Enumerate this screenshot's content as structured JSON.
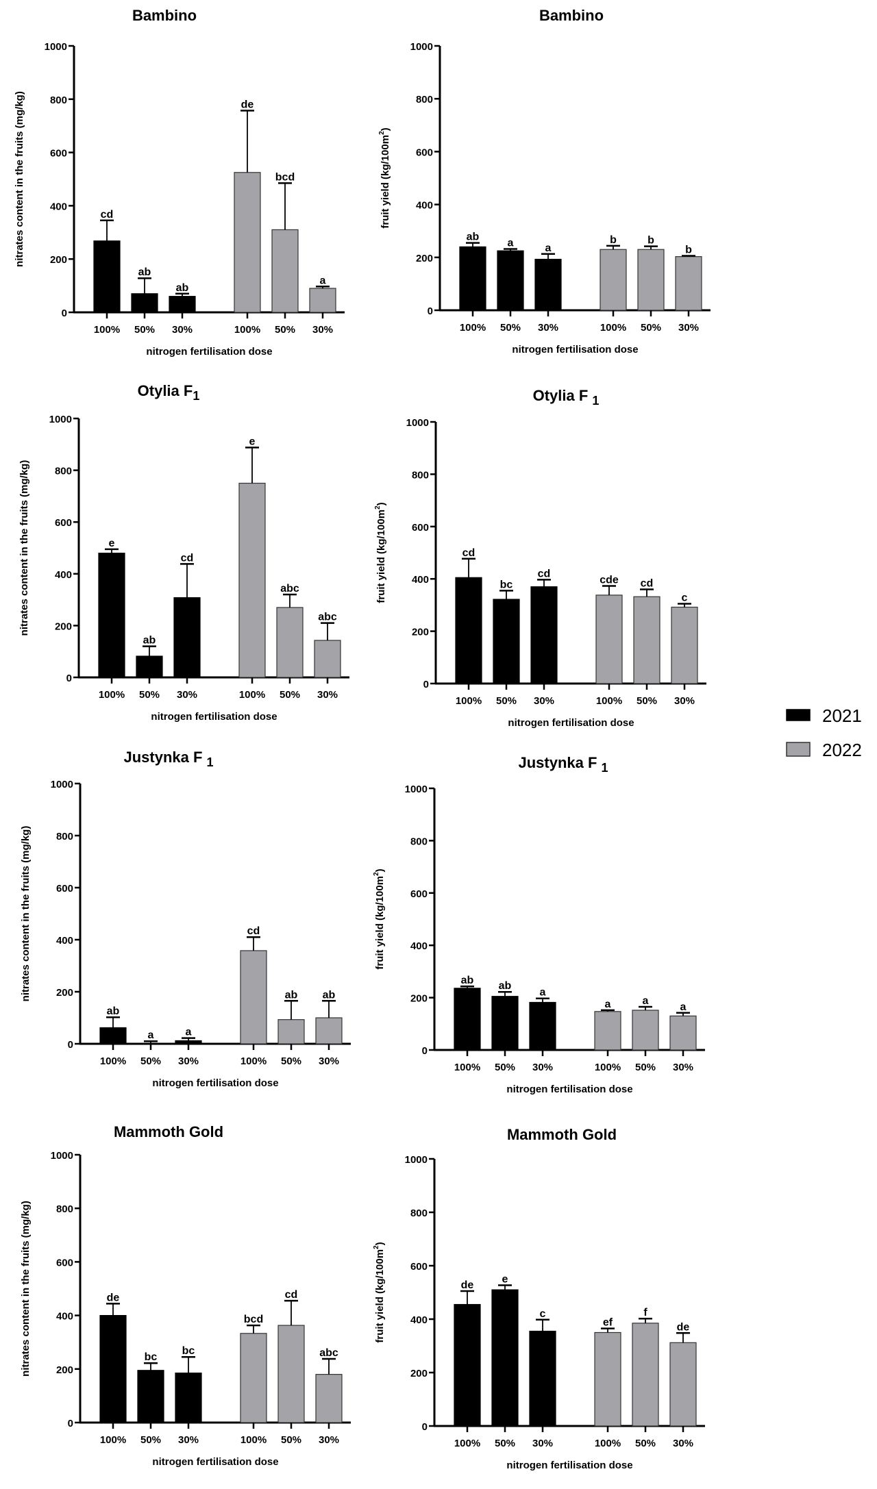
{
  "legend": {
    "items": [
      {
        "label": "2021",
        "color": "#000000"
      },
      {
        "label": "2022",
        "color": "#a3a3a8"
      }
    ]
  },
  "chart_data": [
    {
      "type": "bar",
      "title": "Bambino",
      "title_sub": "",
      "ylabel": "nitrates content in the fruits (mg/kg)",
      "xlabel": "nitrogen fertilisation dose",
      "ylim": [
        0,
        1000
      ],
      "yticks": [
        0,
        200,
        400,
        600,
        800,
        1000
      ],
      "categories": [
        "100%",
        "50%",
        "30%"
      ],
      "series": [
        {
          "name": "2021",
          "values": [
            268,
            70,
            60
          ],
          "errors": [
            77,
            58,
            10
          ],
          "letters": [
            "cd",
            "ab",
            "ab"
          ]
        },
        {
          "name": "2022",
          "values": [
            525,
            310,
            90
          ],
          "errors": [
            232,
            175,
            7
          ],
          "letters": [
            "de",
            "bcd",
            "a"
          ]
        }
      ]
    },
    {
      "type": "bar",
      "title": "Bambino",
      "title_sub": "",
      "ylabel": "fruit yield (kg/100m",
      "ylabel_sup": "2",
      "ylabel_end": ")",
      "xlabel": "nitrogen fertilisation dose",
      "ylim": [
        0,
        1000
      ],
      "yticks": [
        0,
        200,
        400,
        600,
        800,
        1000
      ],
      "categories": [
        "100%",
        "50%",
        "30%"
      ],
      "series": [
        {
          "name": "2021",
          "values": [
            240,
            225,
            193
          ],
          "errors": [
            15,
            7,
            20
          ],
          "letters": [
            "ab",
            "a",
            "a"
          ]
        },
        {
          "name": "2022",
          "values": [
            230,
            230,
            203
          ],
          "errors": [
            14,
            12,
            3
          ],
          "letters": [
            "b",
            "b",
            "b"
          ]
        }
      ]
    },
    {
      "type": "bar",
      "title": "Otylia F",
      "title_sub": "1",
      "ylabel": "nitrates content in the fruits (mg/kg)",
      "xlabel": "nitrogen fertilisation dose",
      "ylim": [
        0,
        1000
      ],
      "yticks": [
        0,
        200,
        400,
        600,
        800,
        1000
      ],
      "categories": [
        "100%",
        "50%",
        "30%"
      ],
      "series": [
        {
          "name": "2021",
          "values": [
            480,
            82,
            308
          ],
          "errors": [
            15,
            38,
            130
          ],
          "letters": [
            "e",
            "ab",
            "cd"
          ]
        },
        {
          "name": "2022",
          "values": [
            750,
            270,
            143
          ],
          "errors": [
            138,
            50,
            67
          ],
          "letters": [
            "e",
            "abc",
            "abc"
          ]
        }
      ]
    },
    {
      "type": "bar",
      "title": "Otylia F ",
      "title_sub": "1",
      "ylabel": "fruit yield (kg/100m",
      "ylabel_sup": "2",
      "ylabel_end": ")",
      "xlabel": "nitrogen fertilisation dose",
      "ylim": [
        0,
        1000
      ],
      "yticks": [
        0,
        200,
        400,
        600,
        800,
        1000
      ],
      "categories": [
        "100%",
        "50%",
        "30%"
      ],
      "series": [
        {
          "name": "2021",
          "values": [
            405,
            322,
            370
          ],
          "errors": [
            72,
            33,
            27
          ],
          "letters": [
            "cd",
            "bc",
            "cd"
          ]
        },
        {
          "name": "2022",
          "values": [
            338,
            332,
            292
          ],
          "errors": [
            35,
            28,
            13
          ],
          "letters": [
            "cde",
            "cd",
            "c"
          ]
        }
      ]
    },
    {
      "type": "bar",
      "title": "Justynka F ",
      "title_sub": "1",
      "ylabel": "nitrates content in the fruits (mg/kg)",
      "xlabel": "nitrogen fertilisation dose",
      "ylim": [
        0,
        1000
      ],
      "yticks": [
        0,
        200,
        400,
        600,
        800,
        1000
      ],
      "categories": [
        "100%",
        "50%",
        "30%"
      ],
      "series": [
        {
          "name": "2021",
          "values": [
            62,
            2,
            12
          ],
          "errors": [
            40,
            8,
            10
          ],
          "letters": [
            "ab",
            "a",
            "a"
          ]
        },
        {
          "name": "2022",
          "values": [
            358,
            93,
            100
          ],
          "errors": [
            52,
            72,
            65
          ],
          "letters": [
            "cd",
            "ab",
            "ab"
          ]
        }
      ]
    },
    {
      "type": "bar",
      "title": "Justynka F ",
      "title_sub": "1",
      "ylabel": "fruit yield (kg/100m",
      "ylabel_sup": "2",
      "ylabel_end": ")",
      "xlabel": "nitrogen fertilisation dose",
      "ylim": [
        0,
        1000
      ],
      "yticks": [
        0,
        200,
        400,
        600,
        800,
        1000
      ],
      "categories": [
        "100%",
        "50%",
        "30%"
      ],
      "series": [
        {
          "name": "2021",
          "values": [
            236,
            205,
            182
          ],
          "errors": [
            7,
            17,
            15
          ],
          "letters": [
            "ab",
            "ab",
            "a"
          ]
        },
        {
          "name": "2022",
          "values": [
            147,
            152,
            130
          ],
          "errors": [
            5,
            13,
            12
          ],
          "letters": [
            "a",
            "a",
            "a"
          ]
        }
      ]
    },
    {
      "type": "bar",
      "title": "Mammoth Gold",
      "title_sub": "",
      "ylabel": "nitrates content in the fruits (mg/kg)",
      "xlabel": "nitrogen fertilisation dose",
      "ylim": [
        0,
        1000
      ],
      "yticks": [
        0,
        200,
        400,
        600,
        800,
        1000
      ],
      "categories": [
        "100%",
        "50%",
        "30%"
      ],
      "series": [
        {
          "name": "2021",
          "values": [
            400,
            195,
            185
          ],
          "errors": [
            44,
            27,
            60
          ],
          "letters": [
            "de",
            "bc",
            "bc"
          ]
        },
        {
          "name": "2022",
          "values": [
            333,
            363,
            180
          ],
          "errors": [
            30,
            92,
            58
          ],
          "letters": [
            "bcd",
            "cd",
            "abc"
          ]
        }
      ]
    },
    {
      "type": "bar",
      "title": "Mammoth Gold",
      "title_sub": "",
      "ylabel": "fruit yield (kg/100m",
      "ylabel_sup": "2",
      "ylabel_end": ")",
      "xlabel": "nitrogen fertilisation dose",
      "ylim": [
        0,
        1000
      ],
      "yticks": [
        0,
        200,
        400,
        600,
        800,
        1000
      ],
      "categories": [
        "100%",
        "50%",
        "30%"
      ],
      "series": [
        {
          "name": "2021",
          "values": [
            455,
            510,
            355
          ],
          "errors": [
            50,
            17,
            43
          ],
          "letters": [
            "de",
            "e",
            "c"
          ]
        },
        {
          "name": "2022",
          "values": [
            350,
            385,
            312
          ],
          "errors": [
            15,
            17,
            36
          ],
          "letters": [
            "ef",
            "f",
            "de"
          ]
        }
      ]
    }
  ]
}
